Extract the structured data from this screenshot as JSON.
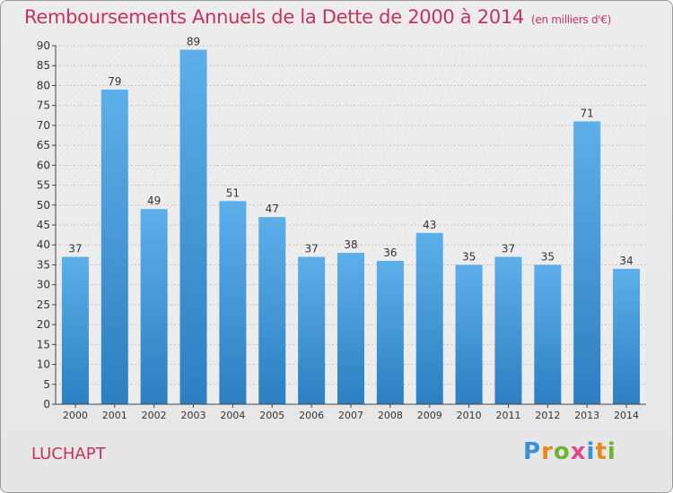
{
  "title": "Remboursements Annuels de la Dette de 2000 à 2014",
  "subtitle": "(en milliers d'€)",
  "commune": "LUCHAPT",
  "logo": "Proxiti",
  "colors": {
    "title": "#c8325a",
    "bar_top": "#5dafea",
    "bar_bottom": "#2c7fc1",
    "grid": "#c8c8c8",
    "axis": "#444444"
  },
  "chart_data": {
    "type": "bar",
    "title": "Remboursements Annuels de la Dette de 2000 à 2014",
    "ylabel": "",
    "xlabel": "",
    "categories": [
      "2000",
      "2001",
      "2002",
      "2003",
      "2004",
      "2005",
      "2006",
      "2007",
      "2008",
      "2009",
      "2010",
      "2011",
      "2012",
      "2013",
      "2014"
    ],
    "values": [
      37,
      79,
      49,
      89,
      51,
      47,
      37,
      38,
      36,
      43,
      35,
      37,
      35,
      71,
      34
    ],
    "ylim": [
      0,
      90
    ],
    "ytick_step": 5,
    "grid": true
  }
}
